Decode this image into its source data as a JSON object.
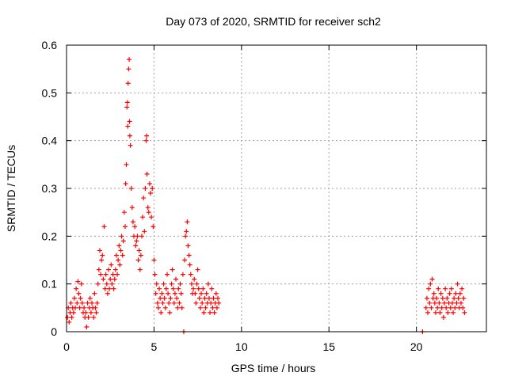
{
  "chart_data": {
    "type": "scatter",
    "title": "Day 073 of 2020, SRMTID for receiver sch2",
    "xlabel": "GPS time / hours",
    "ylabel": "SRMTID / TECUs",
    "xlim": [
      0,
      24
    ],
    "ylim": [
      0,
      0.6
    ],
    "xticks": [
      "0",
      "5",
      "10",
      "15",
      "20"
    ],
    "yticks": [
      "0",
      "0.1",
      "0.2",
      "0.3",
      "0.4",
      "0.5",
      "0.6"
    ],
    "grid": true,
    "legend": "none",
    "marker": "+",
    "series": [
      {
        "name": "SRMTID",
        "color": "#ff0000",
        "points": [
          [
            0.05,
            0.03
          ],
          [
            0.1,
            0.05
          ],
          [
            0.15,
            0.02
          ],
          [
            0.2,
            0.04
          ],
          [
            0.25,
            0.06
          ],
          [
            0.3,
            0.03
          ],
          [
            0.35,
            0.05
          ],
          [
            0.4,
            0.04
          ],
          [
            0.45,
            0.07
          ],
          [
            0.5,
            0.05
          ],
          [
            0.55,
            0.09
          ],
          [
            0.6,
            0.06
          ],
          [
            0.65,
            0.105
          ],
          [
            0.7,
            0.08
          ],
          [
            0.75,
            0.05
          ],
          [
            0.8,
            0.07
          ],
          [
            0.85,
            0.1
          ],
          [
            0.9,
            0.06
          ],
          [
            0.95,
            0.04
          ],
          [
            1.0,
            0.05
          ],
          [
            1.05,
            0.03
          ],
          [
            1.1,
            0.04
          ],
          [
            1.15,
            0.01
          ],
          [
            1.2,
            0.06
          ],
          [
            1.25,
            0.03
          ],
          [
            1.3,
            0.05
          ],
          [
            1.35,
            0.07
          ],
          [
            1.4,
            0.04
          ],
          [
            1.45,
            0.06
          ],
          [
            1.5,
            0.05
          ],
          [
            1.55,
            0.03
          ],
          [
            1.6,
            0.08
          ],
          [
            1.65,
            0.05
          ],
          [
            1.7,
            0.04
          ],
          [
            1.75,
            0.06
          ],
          [
            1.8,
            0.1
          ],
          [
            1.85,
            0.13
          ],
          [
            1.9,
            0.17
          ],
          [
            1.95,
            0.12
          ],
          [
            2.0,
            0.15
          ],
          [
            2.05,
            0.16
          ],
          [
            2.1,
            0.11
          ],
          [
            2.15,
            0.22
          ],
          [
            2.2,
            0.09
          ],
          [
            2.25,
            0.12
          ],
          [
            2.3,
            0.1
          ],
          [
            2.35,
            0.08
          ],
          [
            2.4,
            0.13
          ],
          [
            2.45,
            0.09
          ],
          [
            2.5,
            0.11
          ],
          [
            2.55,
            0.14
          ],
          [
            2.6,
            0.1
          ],
          [
            2.65,
            0.12
          ],
          [
            2.7,
            0.09
          ],
          [
            2.75,
            0.11
          ],
          [
            2.8,
            0.13
          ],
          [
            2.85,
            0.16
          ],
          [
            2.9,
            0.12
          ],
          [
            2.95,
            0.15
          ],
          [
            3.0,
            0.18
          ],
          [
            3.05,
            0.14
          ],
          [
            3.1,
            0.17
          ],
          [
            3.15,
            0.2
          ],
          [
            3.2,
            0.16
          ],
          [
            3.25,
            0.19
          ],
          [
            3.3,
            0.25
          ],
          [
            3.35,
            0.22
          ],
          [
            3.38,
            0.31
          ],
          [
            3.42,
            0.35
          ],
          [
            3.45,
            0.47
          ],
          [
            3.48,
            0.48
          ],
          [
            3.5,
            0.43
          ],
          [
            3.52,
            0.52
          ],
          [
            3.55,
            0.55
          ],
          [
            3.58,
            0.57
          ],
          [
            3.6,
            0.44
          ],
          [
            3.62,
            0.41
          ],
          [
            3.65,
            0.39
          ],
          [
            3.7,
            0.3
          ],
          [
            3.75,
            0.26
          ],
          [
            3.8,
            0.23
          ],
          [
            3.85,
            0.2
          ],
          [
            3.9,
            0.22
          ],
          [
            3.95,
            0.18
          ],
          [
            4.0,
            0.19
          ],
          [
            4.05,
            0.2
          ],
          [
            4.1,
            0.15
          ],
          [
            4.15,
            0.17
          ],
          [
            4.2,
            0.13
          ],
          [
            4.25,
            0.16
          ],
          [
            4.3,
            0.2
          ],
          [
            4.35,
            0.24
          ],
          [
            4.4,
            0.28
          ],
          [
            4.45,
            0.21
          ],
          [
            4.5,
            0.3
          ],
          [
            4.55,
            0.4
          ],
          [
            4.58,
            0.41
          ],
          [
            4.6,
            0.33
          ],
          [
            4.65,
            0.26
          ],
          [
            4.7,
            0.25
          ],
          [
            4.75,
            0.31
          ],
          [
            4.8,
            0.29
          ],
          [
            4.85,
            0.24
          ],
          [
            4.9,
            0.3
          ],
          [
            4.95,
            0.22
          ],
          [
            5.0,
            0.15
          ],
          [
            5.05,
            0.12
          ],
          [
            5.1,
            0.08
          ],
          [
            5.15,
            0.1
          ],
          [
            5.2,
            0.06
          ],
          [
            5.25,
            0.05
          ],
          [
            5.3,
            0.09
          ],
          [
            5.35,
            0.07
          ],
          [
            5.4,
            0.04
          ],
          [
            5.45,
            0.08
          ],
          [
            5.5,
            0.06
          ],
          [
            5.55,
            0.1
          ],
          [
            5.6,
            0.07
          ],
          [
            5.65,
            0.05
          ],
          [
            5.7,
            0.09
          ],
          [
            5.75,
            0.12
          ],
          [
            5.8,
            0.08
          ],
          [
            5.85,
            0.06
          ],
          [
            5.9,
            0.04
          ],
          [
            5.95,
            0.07
          ],
          [
            6.0,
            0.1
          ],
          [
            6.05,
            0.13
          ],
          [
            6.1,
            0.09
          ],
          [
            6.15,
            0.06
          ],
          [
            6.2,
            0.08
          ],
          [
            6.25,
            0.11
          ],
          [
            6.3,
            0.07
          ],
          [
            6.35,
            0.05
          ],
          [
            6.4,
            0.09
          ],
          [
            6.45,
            0.06
          ],
          [
            6.5,
            0.1
          ],
          [
            6.55,
            0.08
          ],
          [
            6.6,
            0.05
          ],
          [
            6.65,
            0.12
          ],
          [
            6.7,
            0.0
          ],
          [
            6.75,
            0.15
          ],
          [
            6.8,
            0.2
          ],
          [
            6.85,
            0.21
          ],
          [
            6.9,
            0.23
          ],
          [
            6.95,
            0.18
          ],
          [
            7.0,
            0.16
          ],
          [
            7.05,
            0.14
          ],
          [
            7.1,
            0.12
          ],
          [
            7.15,
            0.1
          ],
          [
            7.2,
            0.08
          ],
          [
            7.25,
            0.09
          ],
          [
            7.3,
            0.11
          ],
          [
            7.35,
            0.08
          ],
          [
            7.4,
            0.06
          ],
          [
            7.45,
            0.1
          ],
          [
            7.5,
            0.13
          ],
          [
            7.55,
            0.09
          ],
          [
            7.6,
            0.07
          ],
          [
            7.65,
            0.05
          ],
          [
            7.7,
            0.08
          ],
          [
            7.75,
            0.06
          ],
          [
            7.8,
            0.09
          ],
          [
            7.85,
            0.04
          ],
          [
            7.9,
            0.07
          ],
          [
            7.95,
            0.05
          ],
          [
            8.0,
            0.08
          ],
          [
            8.05,
            0.06
          ],
          [
            8.1,
            0.1
          ],
          [
            8.15,
            0.07
          ],
          [
            8.2,
            0.04
          ],
          [
            8.25,
            0.06
          ],
          [
            8.3,
            0.09
          ],
          [
            8.35,
            0.05
          ],
          [
            8.4,
            0.07
          ],
          [
            8.45,
            0.04
          ],
          [
            8.5,
            0.06
          ],
          [
            8.55,
            0.08
          ],
          [
            8.6,
            0.05
          ],
          [
            8.65,
            0.07
          ],
          [
            8.7,
            0.06
          ],
          [
            20.35,
            0.0
          ],
          [
            20.55,
            0.05
          ],
          [
            20.6,
            0.07
          ],
          [
            20.65,
            0.04
          ],
          [
            20.7,
            0.09
          ],
          [
            20.75,
            0.06
          ],
          [
            20.8,
            0.1
          ],
          [
            20.85,
            0.05
          ],
          [
            20.9,
            0.11
          ],
          [
            20.95,
            0.07
          ],
          [
            21.0,
            0.08
          ],
          [
            21.05,
            0.06
          ],
          [
            21.1,
            0.04
          ],
          [
            21.15,
            0.07
          ],
          [
            21.2,
            0.05
          ],
          [
            21.25,
            0.09
          ],
          [
            21.3,
            0.06
          ],
          [
            21.35,
            0.04
          ],
          [
            21.4,
            0.08
          ],
          [
            21.45,
            0.05
          ],
          [
            21.5,
            0.07
          ],
          [
            21.55,
            0.03
          ],
          [
            21.6,
            0.06
          ],
          [
            21.65,
            0.09
          ],
          [
            21.7,
            0.05
          ],
          [
            21.75,
            0.07
          ],
          [
            21.8,
            0.04
          ],
          [
            21.85,
            0.06
          ],
          [
            21.9,
            0.08
          ],
          [
            21.95,
            0.05
          ],
          [
            22.0,
            0.09
          ],
          [
            22.05,
            0.06
          ],
          [
            22.1,
            0.04
          ],
          [
            22.15,
            0.07
          ],
          [
            22.2,
            0.05
          ],
          [
            22.25,
            0.08
          ],
          [
            22.3,
            0.06
          ],
          [
            22.35,
            0.1
          ],
          [
            22.4,
            0.07
          ],
          [
            22.45,
            0.05
          ],
          [
            22.5,
            0.08
          ],
          [
            22.55,
            0.06
          ],
          [
            22.6,
            0.09
          ],
          [
            22.65,
            0.05
          ],
          [
            22.7,
            0.07
          ],
          [
            22.75,
            0.04
          ]
        ]
      }
    ]
  }
}
